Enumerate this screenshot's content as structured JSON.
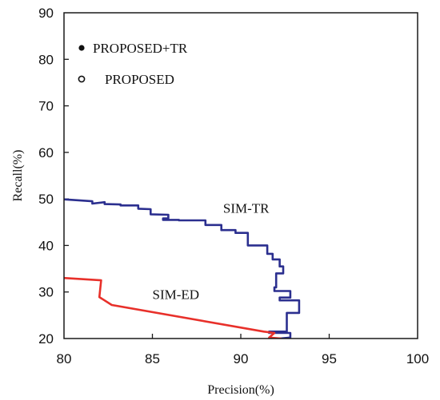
{
  "chart_data": {
    "type": "line",
    "title": "",
    "xlabel": "Precision(%)",
    "ylabel": "Recall(%)",
    "xlim": [
      80,
      100
    ],
    "ylim": [
      20,
      90
    ],
    "xticks": [
      "80",
      "85",
      "90",
      "95",
      "100"
    ],
    "yticks": [
      "20",
      "30",
      "40",
      "50",
      "60",
      "70",
      "80",
      "90"
    ],
    "grid": false,
    "legend": {
      "placement": "top-left",
      "entries": [
        {
          "label": "PROPOSED+TR",
          "marker": "filled-circle"
        },
        {
          "label": "PROPOSED",
          "marker": "open-circle"
        }
      ]
    },
    "annotations": [
      {
        "text": "SIM-TR",
        "x": 89.0,
        "y": 47.0
      },
      {
        "text": "SIM-ED",
        "x": 85.0,
        "y": 28.5
      }
    ],
    "series": [
      {
        "label": "SIM-TR",
        "color": "#2b2f8f",
        "x": [
          80.0,
          81.6,
          81.6,
          82.3,
          82.3,
          83.2,
          83.2,
          84.2,
          84.2,
          84.9,
          84.9,
          85.9,
          85.9,
          85.6,
          85.6,
          86.5,
          86.5,
          88.0,
          88.0,
          88.9,
          88.9,
          89.7,
          89.7,
          90.4,
          90.4,
          91.5,
          91.5,
          91.8,
          91.8,
          92.2,
          92.2,
          92.4,
          92.4,
          92.0,
          92.0,
          92.0,
          92.0,
          91.9,
          91.9,
          92.8,
          92.8,
          92.2,
          92.2,
          93.3,
          93.3,
          92.6,
          92.6,
          91.6,
          91.6,
          92.8,
          92.8,
          92.2
        ],
        "y": [
          49.9,
          49.5,
          49.0,
          49.3,
          48.9,
          48.8,
          48.6,
          48.6,
          47.9,
          47.8,
          46.7,
          46.6,
          45.8,
          45.8,
          45.5,
          45.5,
          45.4,
          45.4,
          44.4,
          44.4,
          43.3,
          43.3,
          42.7,
          42.7,
          40.0,
          40.0,
          38.2,
          38.2,
          37.0,
          37.0,
          35.5,
          35.5,
          34.0,
          34.0,
          32.0,
          32.0,
          31.0,
          31.0,
          30.2,
          30.2,
          28.8,
          28.8,
          28.2,
          28.2,
          25.5,
          25.5,
          21.5,
          21.5,
          21.2,
          21.2,
          20.2,
          20.0
        ]
      },
      {
        "label": "SIM-ED",
        "color": "#e8302a",
        "x": [
          80.0,
          82.1,
          82.0,
          82.7,
          91.3,
          91.9,
          91.6,
          92.3
        ],
        "y": [
          33.0,
          32.5,
          28.9,
          27.2,
          21.5,
          21.2,
          20.2,
          20.0
        ]
      }
    ]
  }
}
